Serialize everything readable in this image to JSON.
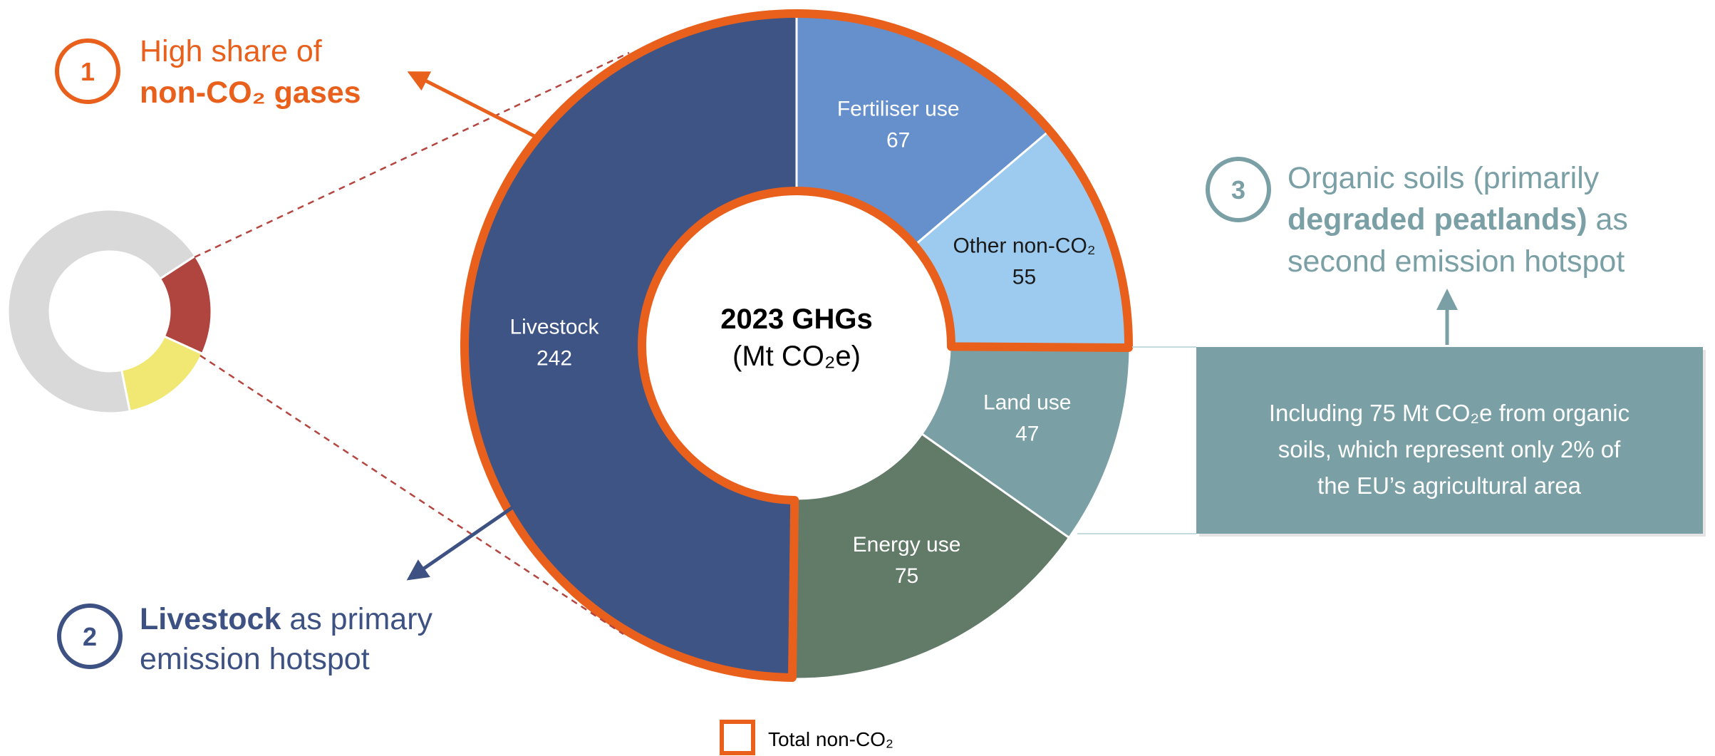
{
  "chart_data": [
    {
      "type": "donut",
      "title": "2023 GHGs",
      "subtitle": "(Mt CO₂e)",
      "categories": [
        "Fertiliser use",
        "Other non-CO₂",
        "Land use",
        "Energy use",
        "Livestock"
      ],
      "values": [
        67,
        55,
        47,
        75,
        242
      ],
      "colors": [
        "#6690cc",
        "#9ccbef",
        "#7aa0a6",
        "#627a68",
        "#3d5485"
      ],
      "outline": {
        "label": "Total non-CO₂",
        "color": "#e8601c",
        "categories": [
          "Fertiliser use",
          "Other non-CO₂",
          "Livestock"
        ]
      }
    },
    {
      "type": "donut",
      "categories": [
        null,
        null,
        null
      ],
      "values": [
        16,
        15,
        69
      ],
      "colors": [
        "#b0443f",
        "#f0e873",
        "#d9d9d9"
      ]
    }
  ],
  "annotations": [
    {
      "number": "1",
      "lines": [
        [
          "High share of"
        ],
        [
          "non-CO₂ gases"
        ]
      ]
    },
    {
      "number": "2",
      "lines": [
        [
          "Livestock",
          " as primary"
        ],
        [
          "emission hotspot"
        ]
      ]
    },
    {
      "number": "3",
      "lines": [
        [
          "Organic soils (primarily"
        ],
        [
          "degraded peatlands)",
          " as"
        ],
        [
          "second emission hotspot"
        ]
      ]
    }
  ],
  "callout": [
    "Including 75 Mt CO₂e from organic",
    "soils, which represent only 2% of",
    "the EU’s agricultural area"
  ]
}
